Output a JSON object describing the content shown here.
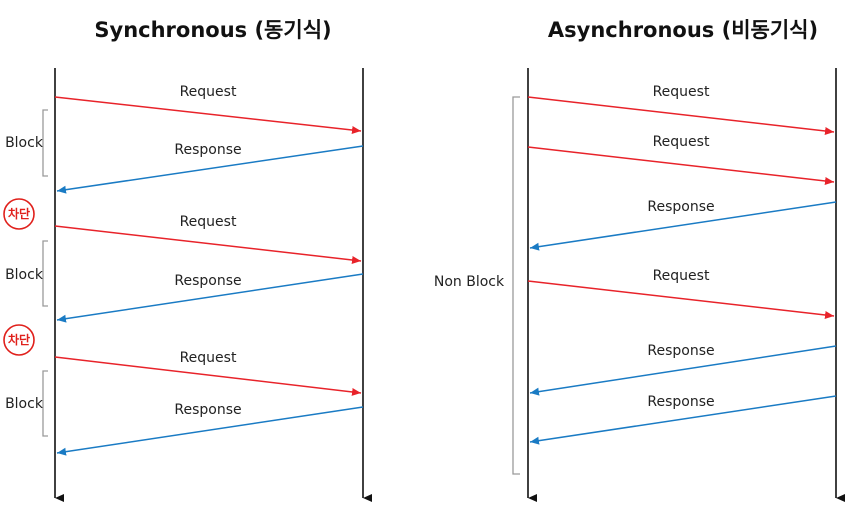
{
  "colors": {
    "request": "#e8232a",
    "response": "#1a7bc4",
    "lifeline": "#111111",
    "bracket": "#9a9a9a",
    "cut": "#e0201b"
  },
  "sync": {
    "title": "Synchronous (동기식)",
    "messages": [
      {
        "label": "Request",
        "kind": "request"
      },
      {
        "label": "Response",
        "kind": "response"
      },
      {
        "label": "Request",
        "kind": "request"
      },
      {
        "label": "Response",
        "kind": "response"
      },
      {
        "label": "Request",
        "kind": "request"
      },
      {
        "label": "Response",
        "kind": "response"
      }
    ],
    "blocks": [
      {
        "label": "Block"
      },
      {
        "label": "Block"
      },
      {
        "label": "Block"
      }
    ],
    "cut_badges": [
      {
        "label": "차단"
      },
      {
        "label": "차단"
      }
    ]
  },
  "async": {
    "title": "Asynchronous (비동기식)",
    "messages": [
      {
        "label": "Request",
        "kind": "request"
      },
      {
        "label": "Request",
        "kind": "request"
      },
      {
        "label": "Response",
        "kind": "response"
      },
      {
        "label": "Request",
        "kind": "request"
      },
      {
        "label": "Response",
        "kind": "response"
      },
      {
        "label": "Response",
        "kind": "response"
      }
    ],
    "non_block": {
      "label": "Non Block"
    }
  }
}
